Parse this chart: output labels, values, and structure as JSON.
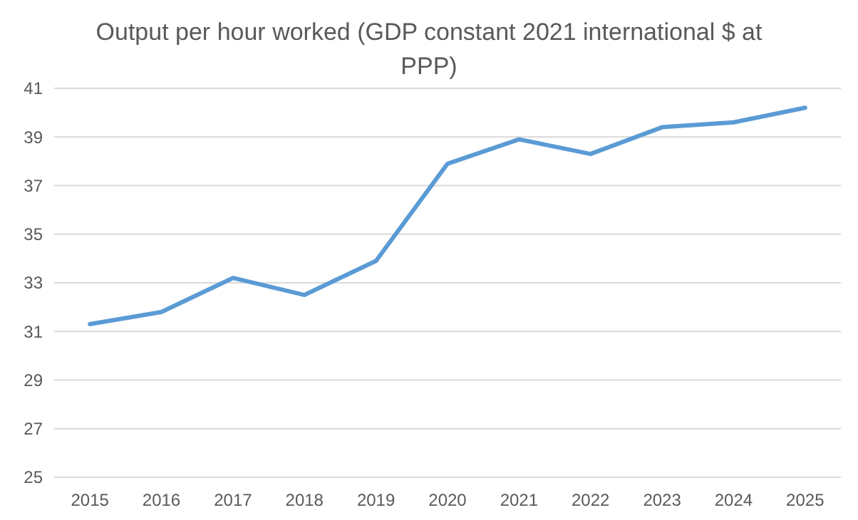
{
  "chart_data": {
    "type": "line",
    "title": "Output per hour worked (GDP constant 2021 international $ at PPP)",
    "categories": [
      "2015",
      "2016",
      "2017",
      "2018",
      "2019",
      "2020",
      "2021",
      "2022",
      "2023",
      "2024",
      "2025"
    ],
    "series": [
      {
        "color": "#5b9bd5",
        "values": [
          31.3,
          31.8,
          33.2,
          32.5,
          33.9,
          37.9,
          38.9,
          38.3,
          39.4,
          39.6,
          40.2
        ]
      }
    ],
    "ylim": [
      25,
      41
    ],
    "yticks": [
      25,
      27,
      29,
      31,
      33,
      35,
      37,
      39,
      41
    ],
    "grid": "y",
    "marker": "none",
    "line_style": "solid"
  }
}
